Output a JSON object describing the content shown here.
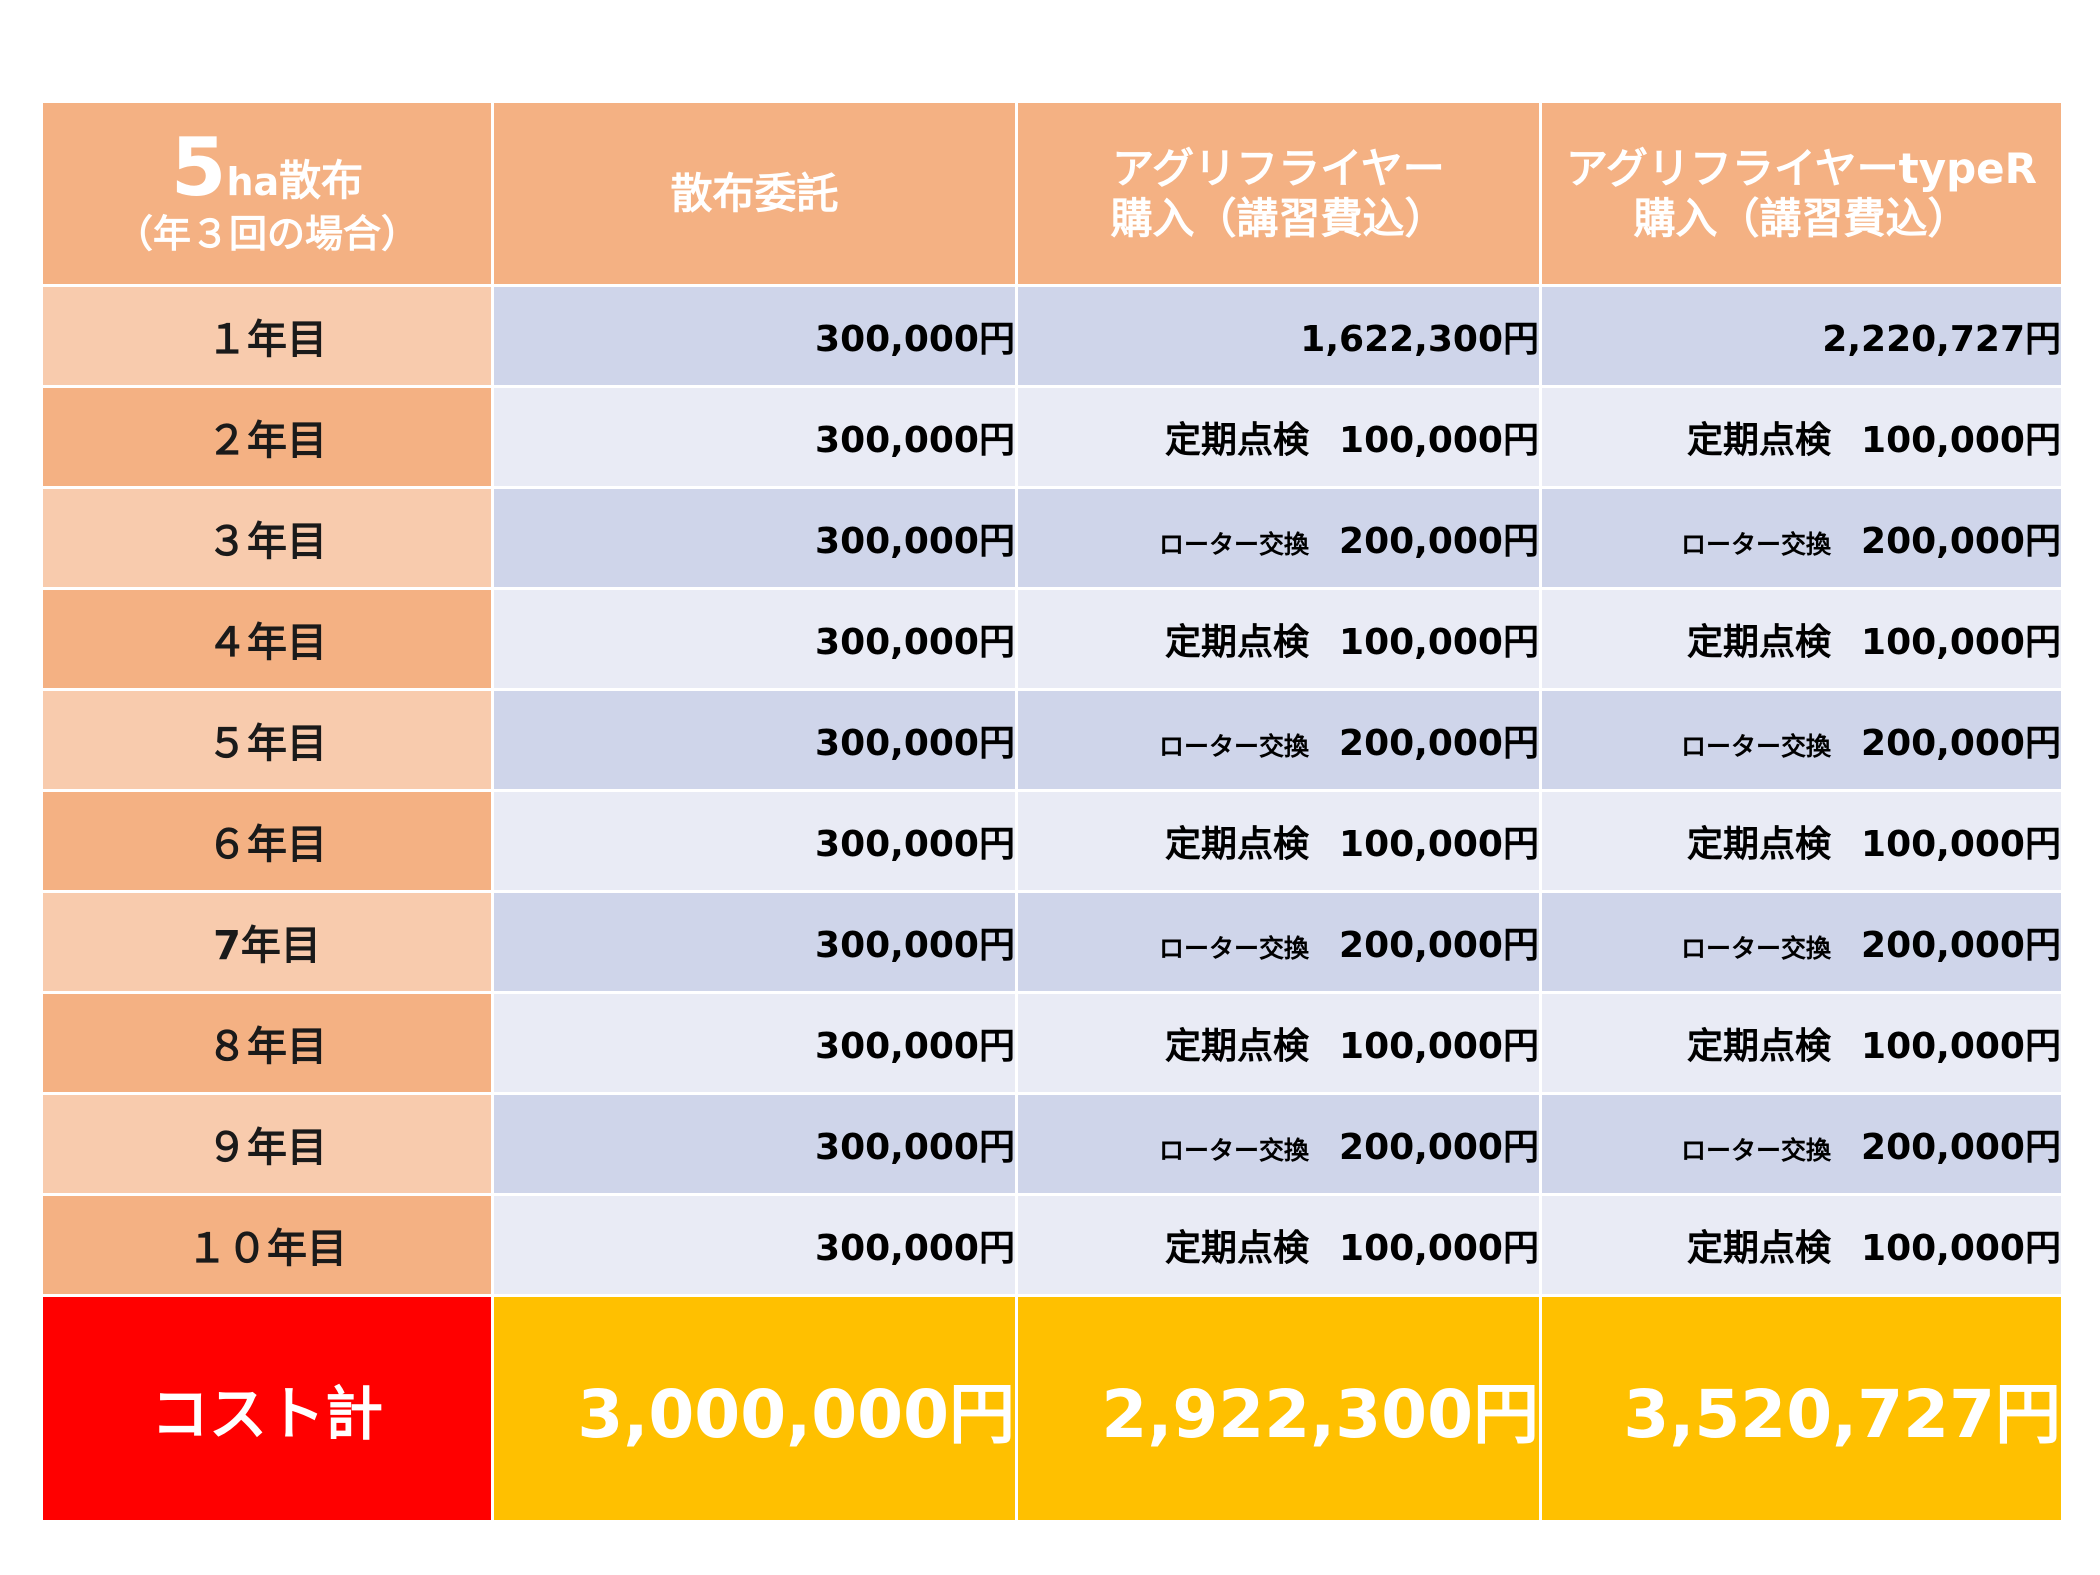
{
  "header": {
    "col0_number": "5",
    "col0_unit": "ha",
    "col0_label": "散布",
    "col0_sub": "（年３回の場合）",
    "col1": "散布委託",
    "col2_line1": "アグリフライヤー",
    "col2_line2": "購入（講習費込）",
    "col3_line1": "アグリフライヤーtypeR",
    "col3_line2": "購入（講習費込）"
  },
  "rows": [
    {
      "year": "１年目",
      "c1": "300,000円",
      "c2_note": "",
      "c2": "1,622,300円",
      "c3_note": "",
      "c3": "2,220,727円"
    },
    {
      "year": "２年目",
      "c1": "300,000円",
      "c2_note": "定期点検",
      "c2": "100,000円",
      "c3_note": "定期点検",
      "c3": "100,000円"
    },
    {
      "year": "３年目",
      "c1": "300,000円",
      "c2_note": "ローター交換",
      "c2": "200,000円",
      "c3_note": "ローター交換",
      "c3": "200,000円"
    },
    {
      "year": "４年目",
      "c1": "300,000円",
      "c2_note": "定期点検",
      "c2": "100,000円",
      "c3_note": "定期点検",
      "c3": "100,000円"
    },
    {
      "year": "５年目",
      "c1": "300,000円",
      "c2_note": "ローター交換",
      "c2": "200,000円",
      "c3_note": "ローター交換",
      "c3": "200,000円"
    },
    {
      "year": "６年目",
      "c1": "300,000円",
      "c2_note": "定期点検",
      "c2": "100,000円",
      "c3_note": "定期点検",
      "c3": "100,000円"
    },
    {
      "year": "7年目",
      "c1": "300,000円",
      "c2_note": "ローター交換",
      "c2": "200,000円",
      "c3_note": "ローター交換",
      "c3": "200,000円"
    },
    {
      "year": "８年目",
      "c1": "300,000円",
      "c2_note": "定期点検",
      "c2": "100,000円",
      "c3_note": "定期点検",
      "c3": "100,000円"
    },
    {
      "year": "９年目",
      "c1": "300,000円",
      "c2_note": "ローター交換",
      "c2": "200,000円",
      "c3_note": "ローター交換",
      "c3": "200,000円"
    },
    {
      "year": "１０年目",
      "c1": "300,000円",
      "c2_note": "定期点検",
      "c2": "100,000円",
      "c3_note": "定期点検",
      "c3": "100,000円"
    }
  ],
  "total": {
    "label": "コスト計",
    "c1": "3,000,000円",
    "c2": "2,922,300円",
    "c3": "3,520,727円"
  },
  "colors": {
    "header_bg": "#f4b183",
    "year_light": "#f8cbad",
    "cell_blue": "#cfd5ea",
    "cell_light": "#e9ebf5",
    "total_label_bg": "#ff0000",
    "total_value_bg": "#ffc000"
  }
}
